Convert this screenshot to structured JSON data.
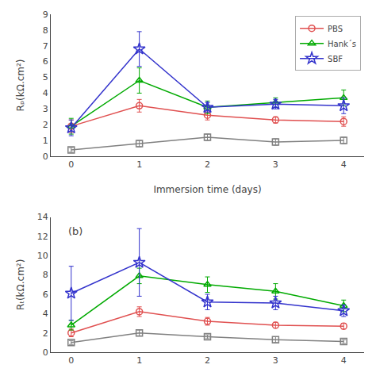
{
  "chart_data": [
    {
      "type": "line",
      "x": [
        0,
        1,
        2,
        3,
        4
      ],
      "xlabel": "Immersion time (days)",
      "ylabel": "Rₚ(kΩ.cm²)",
      "xlim": [
        -0.3,
        4.3
      ],
      "xticks": [
        0,
        1,
        2,
        3,
        4
      ],
      "ylim": [
        0,
        9
      ],
      "yticks": [
        0,
        1,
        2,
        3,
        4,
        5,
        6,
        7,
        8,
        9
      ],
      "grid": false,
      "legend": "upper right",
      "series": [
        {
          "color": "#808080",
          "marker": "square",
          "line_style": "solid",
          "values": [
            0.4,
            0.8,
            1.2,
            0.9,
            1.0
          ],
          "yerr": [
            0.15,
            0.2,
            0.2,
            0.2,
            0.2
          ]
        },
        {
          "name": "PBS",
          "color": "#e05050",
          "marker": "circle",
          "line_style": "solid",
          "values": [
            1.9,
            3.2,
            2.6,
            2.3,
            2.2
          ],
          "yerr": [
            0.4,
            0.4,
            0.3,
            0.2,
            0.3
          ]
        },
        {
          "name": "Hank´s",
          "color": "#00aa00",
          "marker": "triangle-up",
          "line_style": "solid",
          "values": [
            1.9,
            4.8,
            3.1,
            3.4,
            3.7
          ],
          "yerr": [
            0.5,
            0.8,
            0.4,
            0.3,
            0.5
          ]
        },
        {
          "name": "SBF",
          "color": "#3333cc",
          "marker": "star",
          "line_style": "solid",
          "values": [
            1.8,
            6.8,
            3.1,
            3.3,
            3.2
          ],
          "yerr": [
            0.5,
            1.1,
            0.3,
            0.3,
            0.5
          ]
        }
      ]
    },
    {
      "type": "line",
      "x": [
        0,
        1,
        2,
        3,
        4
      ],
      "ylabel": "Rₜ(kΩ.cm²)",
      "annotation": "(b)",
      "xlim": [
        -0.3,
        4.3
      ],
      "xticks": [
        0,
        1,
        2,
        3,
        4
      ],
      "ylim": [
        0,
        14
      ],
      "yticks": [
        0,
        2,
        4,
        6,
        8,
        10,
        12,
        14
      ],
      "grid": false,
      "series": [
        {
          "color": "#808080",
          "marker": "square",
          "line_style": "solid",
          "values": [
            1.0,
            2.0,
            1.6,
            1.3,
            1.1
          ],
          "yerr": [
            0.2,
            0.3,
            0.2,
            0.3,
            0.2
          ]
        },
        {
          "color": "#e05050",
          "marker": "circle",
          "line_style": "solid",
          "values": [
            2.0,
            4.2,
            3.2,
            2.8,
            2.7
          ],
          "yerr": [
            0.4,
            0.5,
            0.4,
            0.3,
            0.3
          ]
        },
        {
          "color": "#00aa00",
          "marker": "triangle-up",
          "line_style": "solid",
          "values": [
            2.8,
            7.9,
            7.0,
            6.3,
            4.8
          ],
          "yerr": [
            0.5,
            0.8,
            0.8,
            0.8,
            0.6
          ]
        },
        {
          "color": "#3333cc",
          "marker": "star",
          "line_style": "solid",
          "values": [
            6.1,
            9.3,
            5.2,
            5.1,
            4.3
          ],
          "yerr": [
            2.8,
            3.5,
            0.8,
            0.7,
            0.6
          ]
        }
      ]
    }
  ]
}
